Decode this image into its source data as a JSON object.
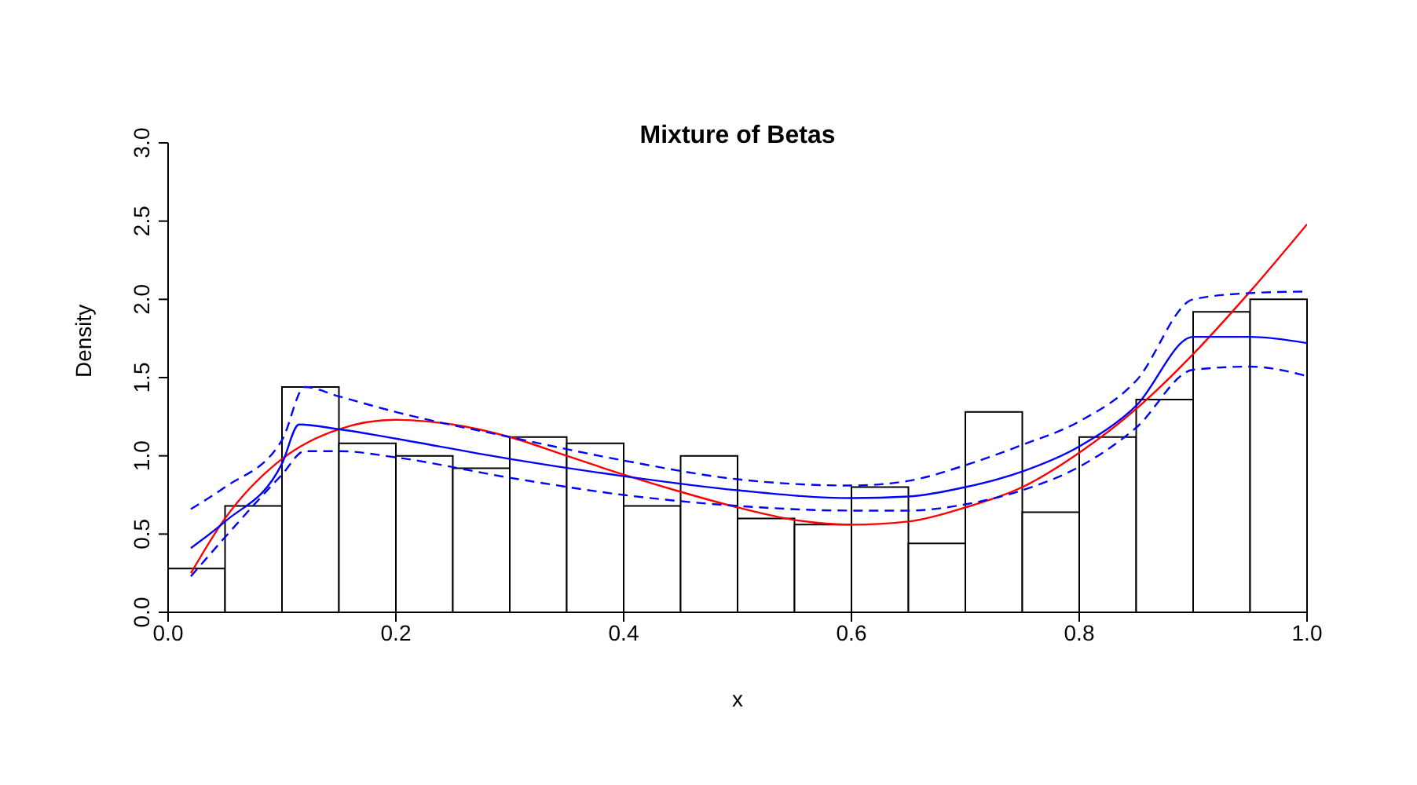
{
  "chart_data": {
    "type": "histogram",
    "title": "Mixture of Betas",
    "xlabel": "x",
    "ylabel": "Density",
    "xlim": [
      0,
      1
    ],
    "xticks": [
      {
        "value": 0,
        "label": "0.0"
      },
      {
        "value": 0.2,
        "label": "0.2"
      },
      {
        "value": 0.4,
        "label": "0.4"
      },
      {
        "value": 0.6,
        "label": "0.6"
      },
      {
        "value": 0.8,
        "label": "0.8"
      },
      {
        "value": 1,
        "label": "1.0"
      }
    ],
    "ylim": [
      0,
      3
    ],
    "yticks": [
      {
        "value": 0,
        "label": "0.0"
      },
      {
        "value": 0.5,
        "label": "0.5"
      },
      {
        "value": 1,
        "label": "1.0"
      },
      {
        "value": 1.5,
        "label": "1.5"
      },
      {
        "value": 2,
        "label": "2.0"
      },
      {
        "value": 2.5,
        "label": "2.5"
      },
      {
        "value": 3,
        "label": "3.0"
      }
    ],
    "grid": false,
    "series": [
      {
        "color": "#ffffff",
        "bins": [
          0,
          0.05,
          0.1,
          0.15,
          0.2,
          0.25,
          0.3,
          0.35,
          0.4,
          0.45,
          0.5,
          0.55,
          0.6,
          0.65,
          0.7,
          0.75,
          0.8,
          0.85,
          0.9,
          0.95,
          1.0
        ],
        "values": [
          0.28,
          0.68,
          1.44,
          1.08,
          1.0,
          0.92,
          1.12,
          1.08,
          0.68,
          1.0,
          0.6,
          0.56,
          0.8,
          0.44,
          1.28,
          0.64,
          1.12,
          1.36,
          1.92,
          2.0
        ]
      },
      {
        "type": "line",
        "color": "#ff0000",
        "line_style": "solid",
        "x": [
          0.02,
          0.05,
          0.1,
          0.15,
          0.2,
          0.25,
          0.3,
          0.35,
          0.4,
          0.45,
          0.5,
          0.55,
          0.6,
          0.65,
          0.7,
          0.75,
          0.8,
          0.85,
          0.9,
          0.95,
          1.0
        ],
        "values": [
          0.25,
          0.6,
          0.98,
          1.17,
          1.23,
          1.2,
          1.12,
          1.0,
          0.88,
          0.77,
          0.67,
          0.59,
          0.56,
          0.58,
          0.67,
          0.8,
          1.02,
          1.3,
          1.65,
          2.05,
          2.48
        ]
      },
      {
        "type": "line",
        "color": "#0000ff",
        "line_style": "solid",
        "x": [
          0.02,
          0.05,
          0.1,
          0.115,
          0.15,
          0.2,
          0.3,
          0.4,
          0.5,
          0.6,
          0.65,
          0.7,
          0.75,
          0.8,
          0.85,
          0.9,
          0.95,
          1.0
        ],
        "values": [
          0.41,
          0.58,
          0.95,
          1.2,
          1.17,
          1.11,
          0.98,
          0.87,
          0.78,
          0.73,
          0.74,
          0.8,
          0.9,
          1.06,
          1.32,
          1.76,
          1.76,
          1.72
        ]
      },
      {
        "type": "line",
        "color": "#0000ff",
        "line_style": "dashed",
        "x": [
          0.02,
          0.05,
          0.1,
          0.12,
          0.15,
          0.2,
          0.3,
          0.4,
          0.5,
          0.6,
          0.65,
          0.7,
          0.75,
          0.8,
          0.85,
          0.9,
          0.95,
          1.0
        ],
        "values": [
          0.66,
          0.8,
          1.1,
          1.44,
          1.38,
          1.28,
          1.12,
          0.97,
          0.85,
          0.81,
          0.84,
          0.94,
          1.07,
          1.22,
          1.48,
          2.0,
          2.04,
          2.05
        ]
      },
      {
        "type": "line",
        "color": "#0000ff",
        "line_style": "dashed",
        "x": [
          0.02,
          0.05,
          0.1,
          0.12,
          0.15,
          0.2,
          0.3,
          0.4,
          0.5,
          0.6,
          0.65,
          0.7,
          0.75,
          0.8,
          0.85,
          0.9,
          0.95,
          1.0
        ],
        "values": [
          0.23,
          0.48,
          0.88,
          1.03,
          1.03,
          0.99,
          0.86,
          0.75,
          0.68,
          0.65,
          0.65,
          0.69,
          0.78,
          0.93,
          1.18,
          1.55,
          1.57,
          1.51
        ]
      }
    ]
  }
}
